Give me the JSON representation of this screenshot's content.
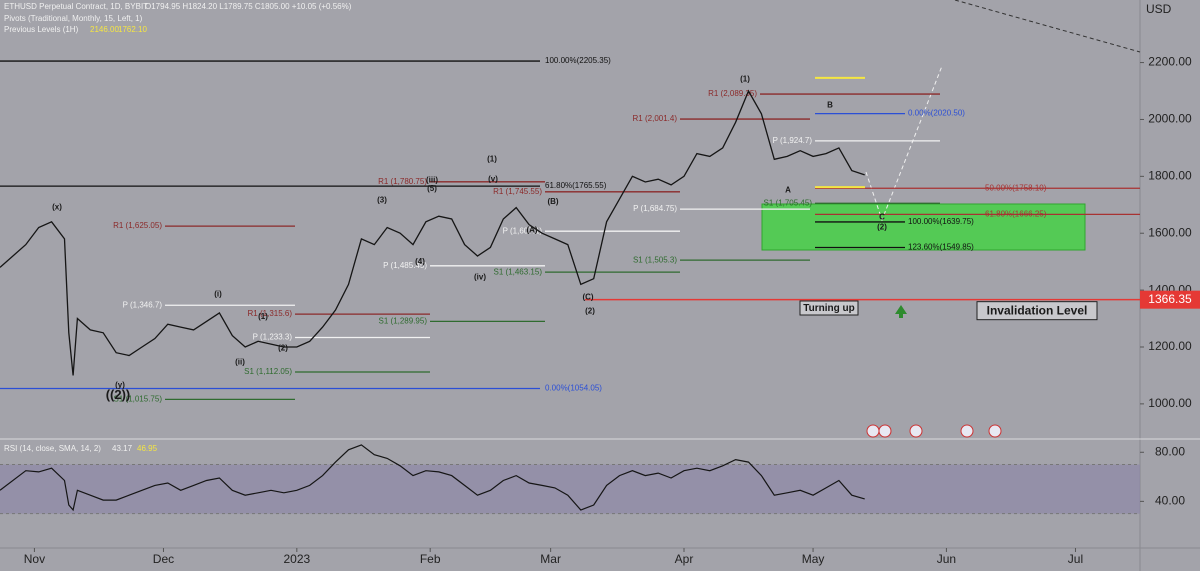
{
  "chart_data": {
    "type": "line",
    "title": "ETHUSD Perpetual Contract, 1D, BYBIT",
    "ohlc": "O1794.95 H1824.20 L1789.75 C1805.00 +10.05 (+0.56%)",
    "pivots_title": "Pivots (Traditional, Monthly, 15, Left, 1)",
    "previous_levels": {
      "title": "Previous Levels (1H)",
      "values": [
        2146.0,
        1762.1
      ],
      "value_labels": [
        "2146.00",
        "1762.10"
      ],
      "color": "#f5e642"
    },
    "currency": "USD",
    "x": [
      -8,
      -2,
      1,
      4,
      7,
      8,
      9,
      10,
      13,
      16,
      19,
      22,
      25,
      28,
      31,
      34,
      37,
      40,
      43,
      46,
      49,
      52,
      55,
      58,
      61,
      64,
      67,
      70,
      73,
      76,
      79,
      82,
      85,
      88,
      91,
      94,
      97,
      100,
      103,
      106,
      109,
      112,
      115,
      118,
      121,
      124,
      127,
      130,
      133,
      136,
      139,
      142,
      145,
      148,
      151,
      154,
      157,
      160,
      163,
      166,
      169,
      172,
      175,
      178,
      181,
      184,
      187,
      190,
      193
    ],
    "xlim": [
      -8,
      257
    ],
    "xticks": [
      {
        "value": 0,
        "label": "Nov"
      },
      {
        "value": 30,
        "label": "Dec"
      },
      {
        "value": 61,
        "label": "2023"
      },
      {
        "value": 92,
        "label": "Feb"
      },
      {
        "value": 120,
        "label": "Mar"
      },
      {
        "value": 151,
        "label": "Apr"
      },
      {
        "value": 181,
        "label": "May"
      },
      {
        "value": 212,
        "label": "Jun"
      },
      {
        "value": 242,
        "label": "Jul"
      }
    ],
    "series": [
      {
        "color": "#151515",
        "values": [
          1480,
          1560,
          1620,
          1640,
          1580,
          1250,
          1100,
          1300,
          1260,
          1250,
          1180,
          1170,
          1200,
          1230,
          1280,
          1270,
          1260,
          1290,
          1320,
          1240,
          1200,
          1220,
          1210,
          1200,
          1200,
          1220,
          1270,
          1330,
          1420,
          1580,
          1560,
          1620,
          1600,
          1560,
          1640,
          1660,
          1650,
          1560,
          1520,
          1550,
          1650,
          1690,
          1630,
          1600,
          1580,
          1560,
          1420,
          1440,
          1640,
          1720,
          1800,
          1780,
          1790,
          1770,
          1800,
          1880,
          1870,
          1900,
          1990,
          2100,
          2020,
          1860,
          1870,
          1890,
          1870,
          1880,
          1900,
          1820,
          1805
        ]
      }
    ],
    "ylim": [
      880,
      2420
    ],
    "yticks": [
      {
        "value": 1000,
        "label": "1000.00"
      },
      {
        "value": 1200,
        "label": "1200.00"
      },
      {
        "value": 1400,
        "label": "1400.00"
      },
      {
        "value": 1600,
        "label": "1600.00"
      },
      {
        "value": 1800,
        "label": "1800.00"
      },
      {
        "value": 2000,
        "label": "2000.00"
      },
      {
        "value": 2200,
        "label": "2200.00"
      }
    ],
    "fib_levels": [
      {
        "label": "100.00%(2205.35)",
        "value": 2205.35,
        "color": "#111111"
      },
      {
        "label": "61.80%(1765.55)",
        "value": 1765.55,
        "color": "#111111"
      },
      {
        "label": "0.00%(1054.05)",
        "value": 1054.05,
        "color": "#2b4fd6"
      },
      {
        "label": "0.00%(2020.50)",
        "value": 2020.5,
        "color": "#2b4fd6"
      },
      {
        "label": "50.00%(1758.10)",
        "value": 1758.1,
        "color": "#a83232"
      },
      {
        "label": "61.80%(1666.25)",
        "value": 1666.25,
        "color": "#a83232"
      },
      {
        "label": "100.00%(1639.75)",
        "value": 1639.75,
        "color": "#111111"
      },
      {
        "label": "123.60%(1549.85)",
        "value": 1549.85,
        "color": "#111111"
      }
    ],
    "pivot_levels": [
      {
        "label": "R1 (2,089.35)",
        "value": 2089.35,
        "color": "#8b2a2a"
      },
      {
        "label": "R1 (2,001.4)",
        "value": 2001.4,
        "color": "#8b2a2a"
      },
      {
        "label": "P (1,924.7)",
        "value": 1924.7,
        "color": "#f2f2f2"
      },
      {
        "label": "P (1,684.75)",
        "value": 1684.75,
        "color": "#f2f2f2"
      },
      {
        "label": "S1 (1,705.45)",
        "value": 1705.45,
        "color": "#2f6b2f"
      },
      {
        "label": "S1 (1,505.3)",
        "value": 1505.3,
        "color": "#2f6b2f"
      },
      {
        "label": "R1 (1,780.75)",
        "value": 1780.75,
        "color": "#8b2a2a"
      },
      {
        "label": "R1 (1,745.55)",
        "value": 1745.55,
        "color": "#8b2a2a"
      },
      {
        "label": "P (1,607.1)",
        "value": 1607.1,
        "color": "#f2f2f2"
      },
      {
        "label": "S1 (1,463.15)",
        "value": 1463.15,
        "color": "#2f6b2f"
      },
      {
        "label": "R1 (1,625.05)",
        "value": 1625.05,
        "color": "#8b2a2a"
      },
      {
        "label": "P (1,485.45)",
        "value": 1485.45,
        "color": "#f2f2f2"
      },
      {
        "label": "S1 (1,289.95)",
        "value": 1289.95,
        "color": "#2f6b2f"
      },
      {
        "label": "P (1,346.7)",
        "value": 1346.7,
        "color": "#f2f2f2"
      },
      {
        "label": "R1 (1,315.6)",
        "value": 1315.6,
        "color": "#8b2a2a"
      },
      {
        "label": "P (1,233.3)",
        "value": 1233.3,
        "color": "#f2f2f2"
      },
      {
        "label": "S1 (1,112.05)",
        "value": 1112.05,
        "color": "#2f6b2f"
      },
      {
        "label": "S1 (1,015.75)",
        "value": 1015.75,
        "color": "#2f6b2f"
      }
    ],
    "waves": [
      "(1)",
      "B",
      "A",
      "C",
      "(2)",
      "(1)",
      "(v)",
      "(iii)",
      "(3)",
      "(5)",
      "(4)",
      "(iv)",
      "(B)",
      "(A)",
      "(C)",
      "(2)",
      "(i)",
      "(ii)",
      "(x)",
      "(y)",
      "((2))",
      "(1)",
      "(2)"
    ],
    "invalidation": {
      "label": "Invalidation Level",
      "value": 1366.35,
      "value_label": "1366.35",
      "color": "#e53935"
    },
    "annotation": "Turning up",
    "rsi": {
      "title": "RSI (14, close, SMA, 14, 2)",
      "readings": [
        43.17,
        46.95
      ],
      "reading_labels": [
        "43.17",
        "46.95"
      ],
      "color": "#151515",
      "values": [
        49,
        65,
        64,
        67,
        57,
        37,
        33,
        49,
        45,
        41,
        41,
        45,
        49,
        53,
        55,
        49,
        53,
        57,
        59,
        49,
        45,
        47,
        49,
        47,
        49,
        53,
        61,
        72,
        82,
        86,
        78,
        75,
        69,
        61,
        65,
        64,
        61,
        53,
        45,
        49,
        57,
        61,
        55,
        53,
        51,
        45,
        33,
        37,
        53,
        61,
        65,
        61,
        63,
        59,
        65,
        67,
        65,
        69,
        74,
        72,
        61,
        45,
        47,
        49,
        45,
        51,
        57,
        45,
        42
      ],
      "ylim": [
        2,
        90
      ],
      "yticks": [
        {
          "value": 40,
          "label": "40.00"
        },
        {
          "value": 80,
          "label": "80.00"
        }
      ],
      "band": [
        30,
        70
      ]
    }
  }
}
